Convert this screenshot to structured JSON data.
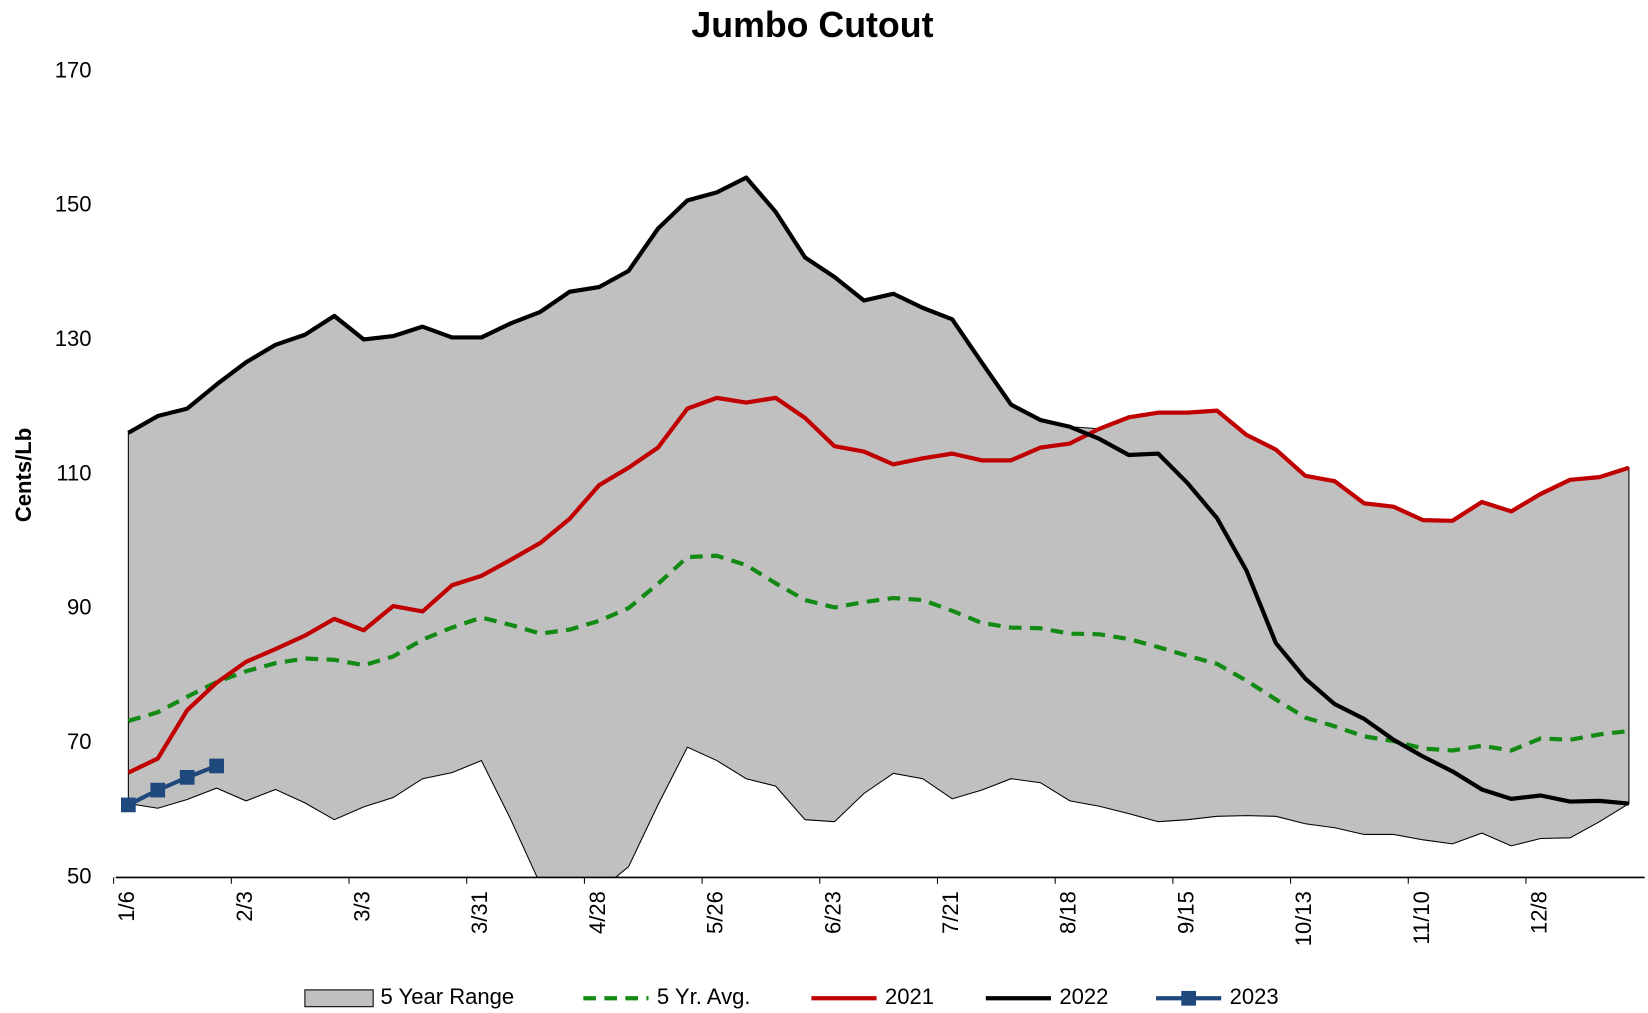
{
  "chart_data": {
    "type": "line",
    "title": "Jumbo Cutout",
    "y_label": "Cents/Lb",
    "categories": [
      "1/6",
      null,
      null,
      null,
      "2/3",
      null,
      null,
      null,
      "3/3",
      null,
      null,
      null,
      "3/31",
      null,
      null,
      null,
      "4/28",
      null,
      null,
      null,
      "5/26",
      null,
      null,
      null,
      "6/23",
      null,
      null,
      null,
      "7/21",
      null,
      null,
      null,
      "8/18",
      null,
      null,
      null,
      "9/15",
      null,
      null,
      null,
      "10/13",
      null,
      null,
      null,
      "11/10",
      null,
      null,
      null,
      "12/8",
      null,
      null,
      null
    ],
    "ylim": [
      50,
      170
    ],
    "yticks": [
      50,
      70,
      90,
      110,
      130,
      150,
      170
    ],
    "grid": false,
    "legend": "bottom",
    "range": {
      "name": "5 Year Range",
      "color": "#c0c0c0",
      "low": [
        61.0,
        60.3,
        61.6,
        63.3,
        61.4,
        63.1,
        61.1,
        58.6,
        60.5,
        61.9,
        64.7,
        65.6,
        67.4,
        58.6,
        49,
        46,
        48,
        51.6,
        60.8,
        69.4,
        67.4,
        64.7,
        63.6,
        58.6,
        58.3,
        62.5,
        65.5,
        64.7,
        61.7,
        63.0,
        64.7,
        64.1,
        61.4,
        60.6,
        59.5,
        58.3,
        58.6,
        59.1,
        59.2,
        59.1,
        58.0,
        57.4,
        56.4,
        56.4,
        55.6,
        55.0,
        56.6,
        54.7,
        55.8,
        55.9,
        58.3,
        61.0
      ],
      "high": [
        116.2,
        118.7,
        119.8,
        123.4,
        126.7,
        129.3,
        130.8,
        133.6,
        130.1,
        130.6,
        132.0,
        130.4,
        130.4,
        132.5,
        134.2,
        137.2,
        137.9,
        140.3,
        146.6,
        150.8,
        152.0,
        154.2,
        149.1,
        142.3,
        139.4,
        135.9,
        136.9,
        134.8,
        133.1,
        126.7,
        120.4,
        118.1,
        117.1,
        116.8,
        118.5,
        119.2,
        119.2,
        119.5,
        115.9,
        113.7,
        109.8,
        109.0,
        105.7,
        105.2,
        103.2,
        103.1,
        105.9,
        104.5,
        107.1,
        109.2,
        109.6,
        111.0
      ]
    },
    "series": [
      {
        "name": "5 Yr. Avg.",
        "color": "#138a13",
        "dashed": true,
        "values": [
          73.3,
          74.6,
          76.9,
          79.1,
          80.7,
          81.9,
          82.6,
          82.4,
          81.6,
          82.9,
          85.4,
          87.2,
          88.7,
          87.6,
          86.3,
          86.9,
          88.2,
          90.1,
          93.7,
          97.7,
          97.9,
          96.5,
          93.8,
          91.3,
          90.2,
          91.0,
          91.6,
          91.3,
          89.7,
          87.9,
          87.2,
          87.1,
          86.3,
          86.2,
          85.5,
          84.3,
          83.0,
          81.8,
          79.3,
          76.5,
          73.8,
          72.5,
          71.0,
          70.3,
          69.2,
          68.9,
          69.6,
          68.9,
          70.7,
          70.5,
          71.3,
          71.8
        ]
      },
      {
        "name": "2021",
        "color": "#c00000",
        "values": [
          65.6,
          67.7,
          74.9,
          79.0,
          82.1,
          84.0,
          86.0,
          88.5,
          86.8,
          90.4,
          89.6,
          93.5,
          94.9,
          97.3,
          99.8,
          103.4,
          108.4,
          111.0,
          114.0,
          119.8,
          121.4,
          120.7,
          121.4,
          118.4,
          114.2,
          113.4,
          111.5,
          112.4,
          113.1,
          112.1,
          112.1,
          114.0,
          114.6,
          116.8,
          118.5,
          119.2,
          119.2,
          119.5,
          115.9,
          113.7,
          109.8,
          109.0,
          105.7,
          105.2,
          103.2,
          103.1,
          105.9,
          104.5,
          107.1,
          109.2,
          109.6,
          111.0
        ]
      },
      {
        "name": "2022",
        "color": "#000000",
        "values": [
          116.2,
          118.7,
          119.8,
          123.4,
          126.7,
          129.3,
          130.8,
          133.6,
          130.1,
          130.6,
          132.0,
          130.4,
          130.4,
          132.5,
          134.2,
          137.2,
          137.9,
          140.3,
          146.6,
          150.8,
          152.0,
          154.2,
          149.1,
          142.3,
          139.4,
          135.9,
          136.9,
          134.8,
          133.1,
          126.7,
          120.4,
          118.1,
          117.1,
          115.3,
          112.9,
          113.1,
          108.7,
          103.5,
          95.7,
          84.9,
          79.6,
          75.8,
          73.6,
          70.5,
          68.0,
          65.8,
          63.1,
          61.7,
          62.2,
          61.3,
          61.4,
          61.0
        ]
      },
      {
        "name": "2023",
        "color": "#1f497d",
        "marker": "square",
        "values": [
          60.8,
          63.0,
          64.9,
          66.6,
          null,
          null,
          null,
          null,
          null,
          null,
          null,
          null,
          null,
          null,
          null,
          null,
          null,
          null,
          null,
          null,
          null,
          null,
          null,
          null,
          null,
          null,
          null,
          null,
          null,
          null,
          null,
          null,
          null,
          null,
          null,
          null,
          null,
          null,
          null,
          null,
          null,
          null,
          null,
          null,
          null,
          null,
          null,
          null,
          null,
          null,
          null,
          null
        ]
      }
    ]
  }
}
